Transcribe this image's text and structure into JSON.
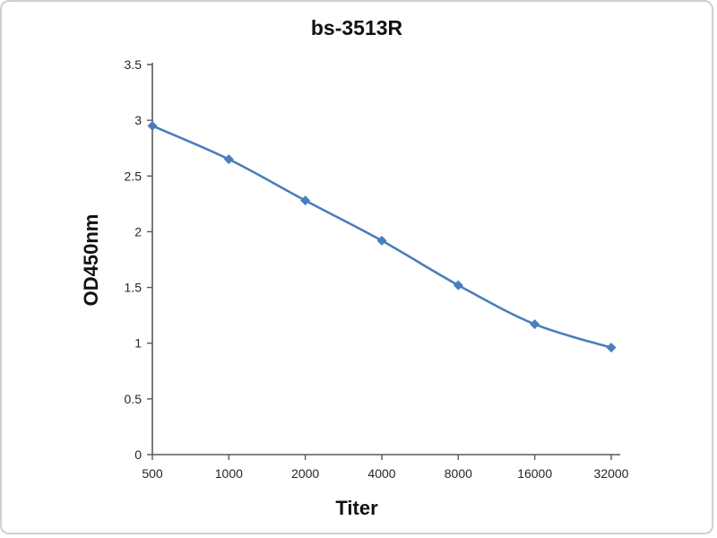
{
  "page": {
    "background_color": "#ffffff",
    "border_color": "#cfcfcf"
  },
  "chart_data": {
    "type": "line",
    "title": "bs-3513R",
    "xlabel": "Titer",
    "ylabel": "OD450nm",
    "categories": [
      "500",
      "1000",
      "2000",
      "4000",
      "8000",
      "16000",
      "32000"
    ],
    "series": [
      {
        "name": "bs-3513R",
        "values": [
          2.95,
          2.65,
          2.28,
          1.92,
          1.52,
          1.17,
          0.96
        ]
      }
    ],
    "ylim": [
      0,
      3.5
    ],
    "ytick_step": 0.5,
    "ytick_labels": [
      "0",
      "0.5",
      "1",
      "1.5",
      "2",
      "2.5",
      "3",
      "3.5"
    ],
    "grid": false,
    "legend_position": "none",
    "line_color": "#4a7ebc",
    "marker": "diamond",
    "marker_color": "#4a7ebc",
    "axis_color": "#595959",
    "tick_label_color": "#262626",
    "smooth": true
  }
}
